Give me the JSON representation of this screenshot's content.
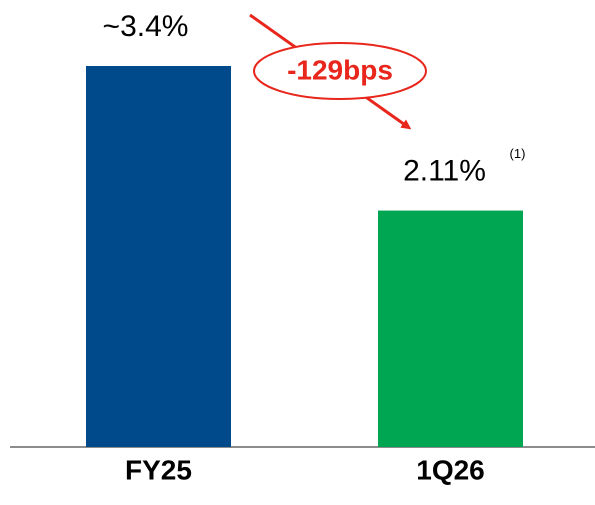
{
  "chart_data": {
    "type": "bar",
    "categories": [
      "FY25",
      "1Q26"
    ],
    "values": [
      3.4,
      2.11
    ],
    "value_labels": [
      "~3.4%",
      "2.11%"
    ],
    "colors": [
      "#004a8c",
      "#00a651"
    ],
    "footnote_marker": "(1)",
    "annotation": "-129bps"
  }
}
